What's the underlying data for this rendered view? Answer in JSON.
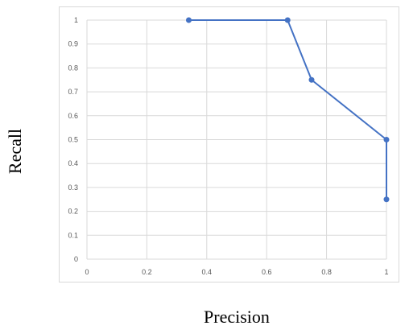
{
  "chart_data": {
    "type": "line",
    "xlabel": "Precision",
    "ylabel": "Recall",
    "xlim": [
      0,
      1
    ],
    "ylim": [
      0,
      1
    ],
    "x_ticks": [
      0,
      0.2,
      0.4,
      0.6,
      0.8,
      1
    ],
    "x_tick_labels": [
      "0",
      "0.2",
      "0.4",
      "0.6",
      "0.8",
      "1"
    ],
    "y_ticks": [
      0,
      0.1,
      0.2,
      0.3,
      0.4,
      0.5,
      0.6,
      0.7,
      0.8,
      0.9,
      1
    ],
    "y_tick_labels": [
      "0",
      "0.1",
      "0.2",
      "0.3",
      "0.4",
      "0.5",
      "0.6",
      "0.7",
      "0.8",
      "0.9",
      "1"
    ],
    "grid": true,
    "series": [
      {
        "color": "#4472c4",
        "markers": true,
        "points": [
          {
            "x": 0.34,
            "y": 1.0
          },
          {
            "x": 0.67,
            "y": 1.0
          },
          {
            "x": 0.75,
            "y": 0.75
          },
          {
            "x": 1.0,
            "y": 0.5
          },
          {
            "x": 1.0,
            "y": 0.25
          }
        ]
      }
    ]
  }
}
